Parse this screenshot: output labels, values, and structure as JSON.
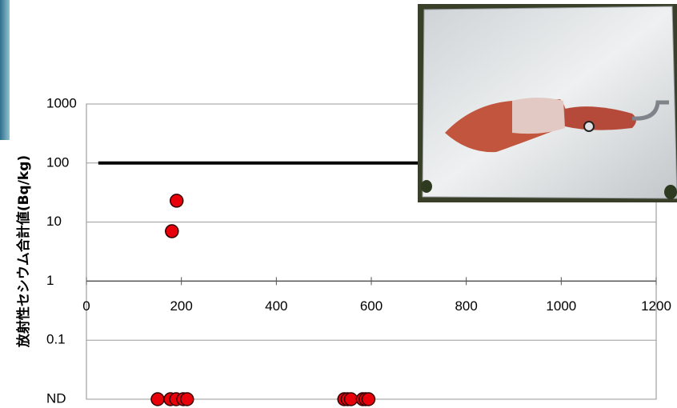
{
  "chart_data": {
    "type": "scatter",
    "y_label": "放射性セシウム合計値(Bq/kg)",
    "xlim": [
      0,
      1200
    ],
    "xticks": [
      0,
      200,
      400,
      600,
      800,
      1000,
      1200
    ],
    "ylim": [
      0.01,
      1000
    ],
    "log_y": true,
    "x_axis_at": 1,
    "yticks": [
      {
        "value": 0.01,
        "label": "ND"
      },
      0.1,
      1,
      10,
      100,
      1000
    ],
    "grid": true,
    "series": [
      {
        "type": "line",
        "color": "#000000",
        "x": [
          25,
          1200
        ],
        "values": [
          100,
          100
        ]
      },
      {
        "type": "scatter",
        "color": "#e8000b",
        "x": [
          180,
          190,
          150,
          177,
          189,
          204,
          212,
          543,
          550,
          557,
          582,
          588,
          594
        ],
        "values": [
          7,
          23,
          0.01,
          0.01,
          0.01,
          0.01,
          0.01,
          0.01,
          0.01,
          0.01,
          0.01,
          0.01,
          0.01
        ]
      }
    ]
  }
}
